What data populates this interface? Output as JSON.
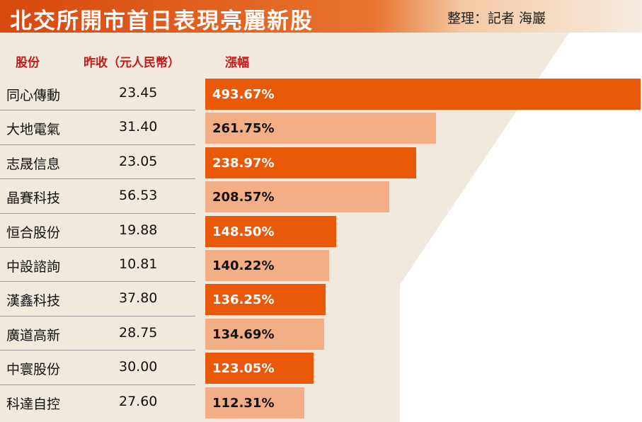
{
  "title": "北交所開市首日表現亮麗新股",
  "credit": "整理：記者 海巖",
  "headers": {
    "stock": "股份",
    "close": "昨收（元人民幣）",
    "gain": "漲幅"
  },
  "colors": {
    "dark_bar": "#e85a0a",
    "light_bar": "#f4ae85",
    "header_red": "#c41a1a",
    "panel_beige": "#f1e8de",
    "title_orange": "#d9480f"
  },
  "chart_data": {
    "type": "bar",
    "orientation": "horizontal",
    "categories": [
      "同心傳動",
      "大地電氣",
      "志晟信息",
      "晶賽科技",
      "恒合股份",
      "中設諮詢",
      "漢鑫科技",
      "廣道高新",
      "中寰股份",
      "科達自控"
    ],
    "close_prices": [
      "23.45",
      "31.40",
      "23.05",
      "56.53",
      "19.88",
      "10.81",
      "37.80",
      "28.75",
      "30.00",
      "27.60"
    ],
    "values": [
      493.67,
      261.75,
      238.97,
      208.57,
      148.5,
      140.22,
      136.25,
      134.69,
      123.05,
      112.31
    ],
    "labels": [
      "493.67%",
      "261.75%",
      "238.97%",
      "208.57%",
      "148.50%",
      "140.22%",
      "136.25%",
      "134.69%",
      "123.05%",
      "112.31%"
    ],
    "ylabel": "漲幅"
  }
}
